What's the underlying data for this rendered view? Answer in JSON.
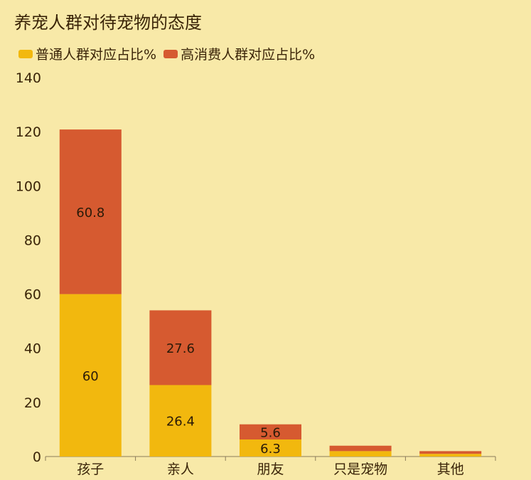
{
  "chart_data": {
    "type": "bar",
    "stacked": true,
    "title": "养宠人群对待宠物的态度",
    "categories": [
      "孩子",
      "亲人",
      "朋友",
      "只是宠物",
      "其他"
    ],
    "series": [
      {
        "name": "普通人群对应占比%",
        "color": "#f2b80e",
        "values": [
          60,
          26.4,
          6.3,
          2,
          1
        ],
        "labels": [
          "60",
          "26.4",
          "6.3",
          "",
          ""
        ]
      },
      {
        "name": "高消费人群对应占比%",
        "color": "#d65a30",
        "values": [
          60.8,
          27.6,
          5.6,
          2,
          1
        ],
        "labels": [
          "60.8",
          "27.6",
          "5.6",
          "",
          ""
        ]
      }
    ],
    "ylim": [
      0,
      140
    ],
    "yticks": [
      0,
      20,
      40,
      60,
      80,
      100,
      120,
      140
    ],
    "legend_position": "top-left",
    "grid": false
  }
}
